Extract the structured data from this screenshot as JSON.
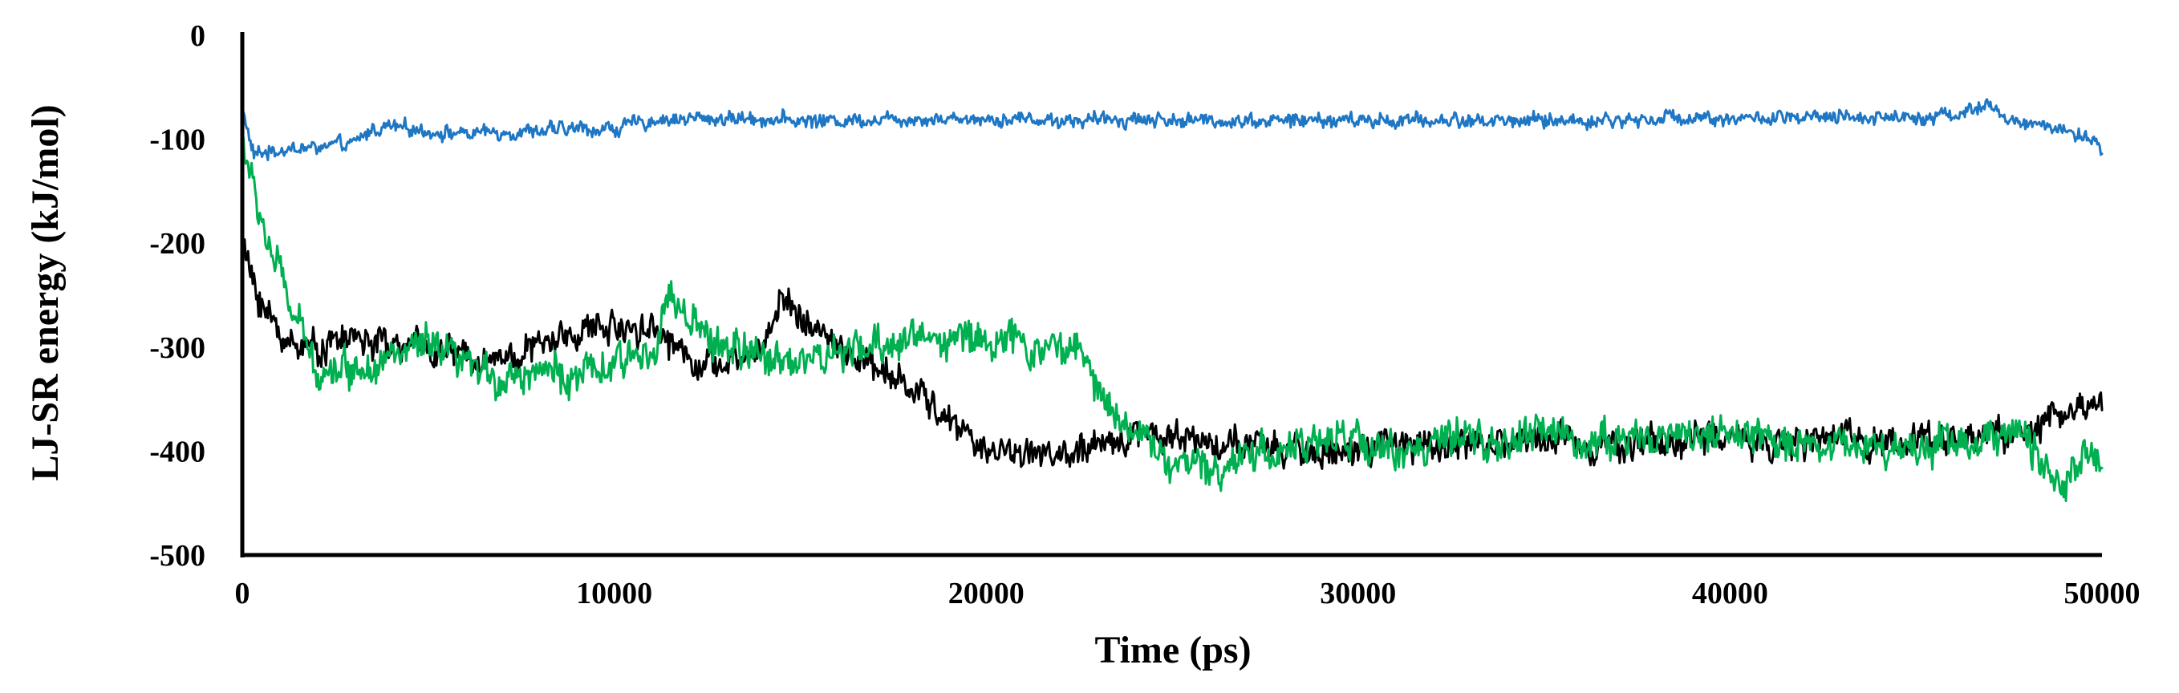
{
  "chart_data": {
    "type": "line",
    "xlabel": "Time (ps)",
    "ylabel": "LJ-SR energy (kJ/mol)",
    "xlim": [
      0,
      50000
    ],
    "ylim": [
      -500,
      0
    ],
    "xticks": [
      "0",
      "10000",
      "20000",
      "30000",
      "40000",
      "50000"
    ],
    "yticks": [
      "0",
      "-100",
      "-200",
      "-300",
      "-400",
      "-500"
    ],
    "grid": false,
    "legend": "none",
    "series": [
      {
        "color": "#1f77c4",
        "x": [
          0,
          300,
          1000,
          2000,
          3000,
          3500,
          4000,
          5000,
          6000,
          7000,
          8000,
          9000,
          10000,
          11000,
          12000,
          13000,
          14000,
          15000,
          16000,
          17000,
          18000,
          19000,
          20000,
          21000,
          22000,
          23000,
          24000,
          25000,
          26000,
          27000,
          28000,
          29000,
          30000,
          31000,
          32000,
          33000,
          34000,
          35000,
          36000,
          37000,
          38000,
          39000,
          40000,
          41000,
          42000,
          43000,
          44000,
          45000,
          46000,
          46500,
          47000,
          47500,
          48000,
          48500,
          49000,
          49500,
          50000
        ],
        "y": [
          -70,
          -115,
          -110,
          -108,
          -105,
          -90,
          -88,
          -92,
          -95,
          -93,
          -92,
          -90,
          -90,
          -82,
          -80,
          -80,
          -80,
          -82,
          -82,
          -80,
          -80,
          -80,
          -80,
          -80,
          -82,
          -82,
          -80,
          -82,
          -82,
          -82,
          -82,
          -82,
          -82,
          -82,
          -82,
          -82,
          -82,
          -82,
          -82,
          -82,
          -80,
          -78,
          -80,
          -80,
          -80,
          -80,
          -78,
          -78,
          -76,
          -72,
          -68,
          -82,
          -85,
          -88,
          -90,
          -100,
          -110
        ]
      },
      {
        "color": "#000000",
        "x": [
          0,
          300,
          1000,
          2000,
          3000,
          4000,
          5000,
          6000,
          7000,
          8000,
          9000,
          10000,
          11000,
          12000,
          13000,
          14000,
          14500,
          15000,
          16000,
          17000,
          18000,
          19000,
          20000,
          21000,
          22000,
          23000,
          24000,
          25000,
          26000,
          27000,
          28000,
          29000,
          30000,
          31000,
          32000,
          33000,
          34000,
          35000,
          36000,
          37000,
          38000,
          39000,
          40000,
          41000,
          42000,
          43000,
          44000,
          45000,
          46000,
          47000,
          48000,
          49000,
          50000
        ],
        "y": [
          -200,
          -240,
          -290,
          -300,
          -290,
          -300,
          -300,
          -310,
          -310,
          -300,
          -285,
          -280,
          -280,
          -310,
          -320,
          -300,
          -250,
          -270,
          -300,
          -320,
          -340,
          -370,
          -400,
          -400,
          -405,
          -400,
          -380,
          -385,
          -390,
          -395,
          -400,
          -400,
          -400,
          -395,
          -395,
          -390,
          -395,
          -385,
          -390,
          -395,
          -390,
          -390,
          -385,
          -390,
          -395,
          -385,
          -390,
          -390,
          -385,
          -385,
          -380,
          -365,
          -350
        ]
      },
      {
        "color": "#00b050",
        "x": [
          0,
          300,
          700,
          1000,
          1500,
          2000,
          3000,
          4000,
          5000,
          6000,
          7000,
          8000,
          9000,
          10000,
          11000,
          11500,
          12000,
          13000,
          14000,
          15000,
          16000,
          17000,
          18000,
          19000,
          20000,
          21000,
          22000,
          22500,
          23000,
          24000,
          25000,
          26000,
          27000,
          28000,
          29000,
          30000,
          31000,
          32000,
          33000,
          34000,
          35000,
          36000,
          37000,
          38000,
          39000,
          40000,
          41000,
          42000,
          43000,
          44000,
          45000,
          46000,
          47000,
          48000,
          48500,
          49000,
          49500,
          50000
        ],
        "y": [
          -100,
          -150,
          -200,
          -230,
          -280,
          -320,
          -320,
          -310,
          -300,
          -320,
          -330,
          -320,
          -330,
          -320,
          -300,
          -250,
          -280,
          -300,
          -310,
          -310,
          -310,
          -300,
          -290,
          -290,
          -290,
          -300,
          -300,
          -300,
          -340,
          -380,
          -410,
          -420,
          -400,
          -400,
          -390,
          -390,
          -400,
          -395,
          -390,
          -395,
          -380,
          -390,
          -390,
          -385,
          -380,
          -385,
          -390,
          -390,
          -395,
          -395,
          -395,
          -390,
          -390,
          -380,
          -420,
          -430,
          -410,
          -410
        ]
      }
    ]
  }
}
